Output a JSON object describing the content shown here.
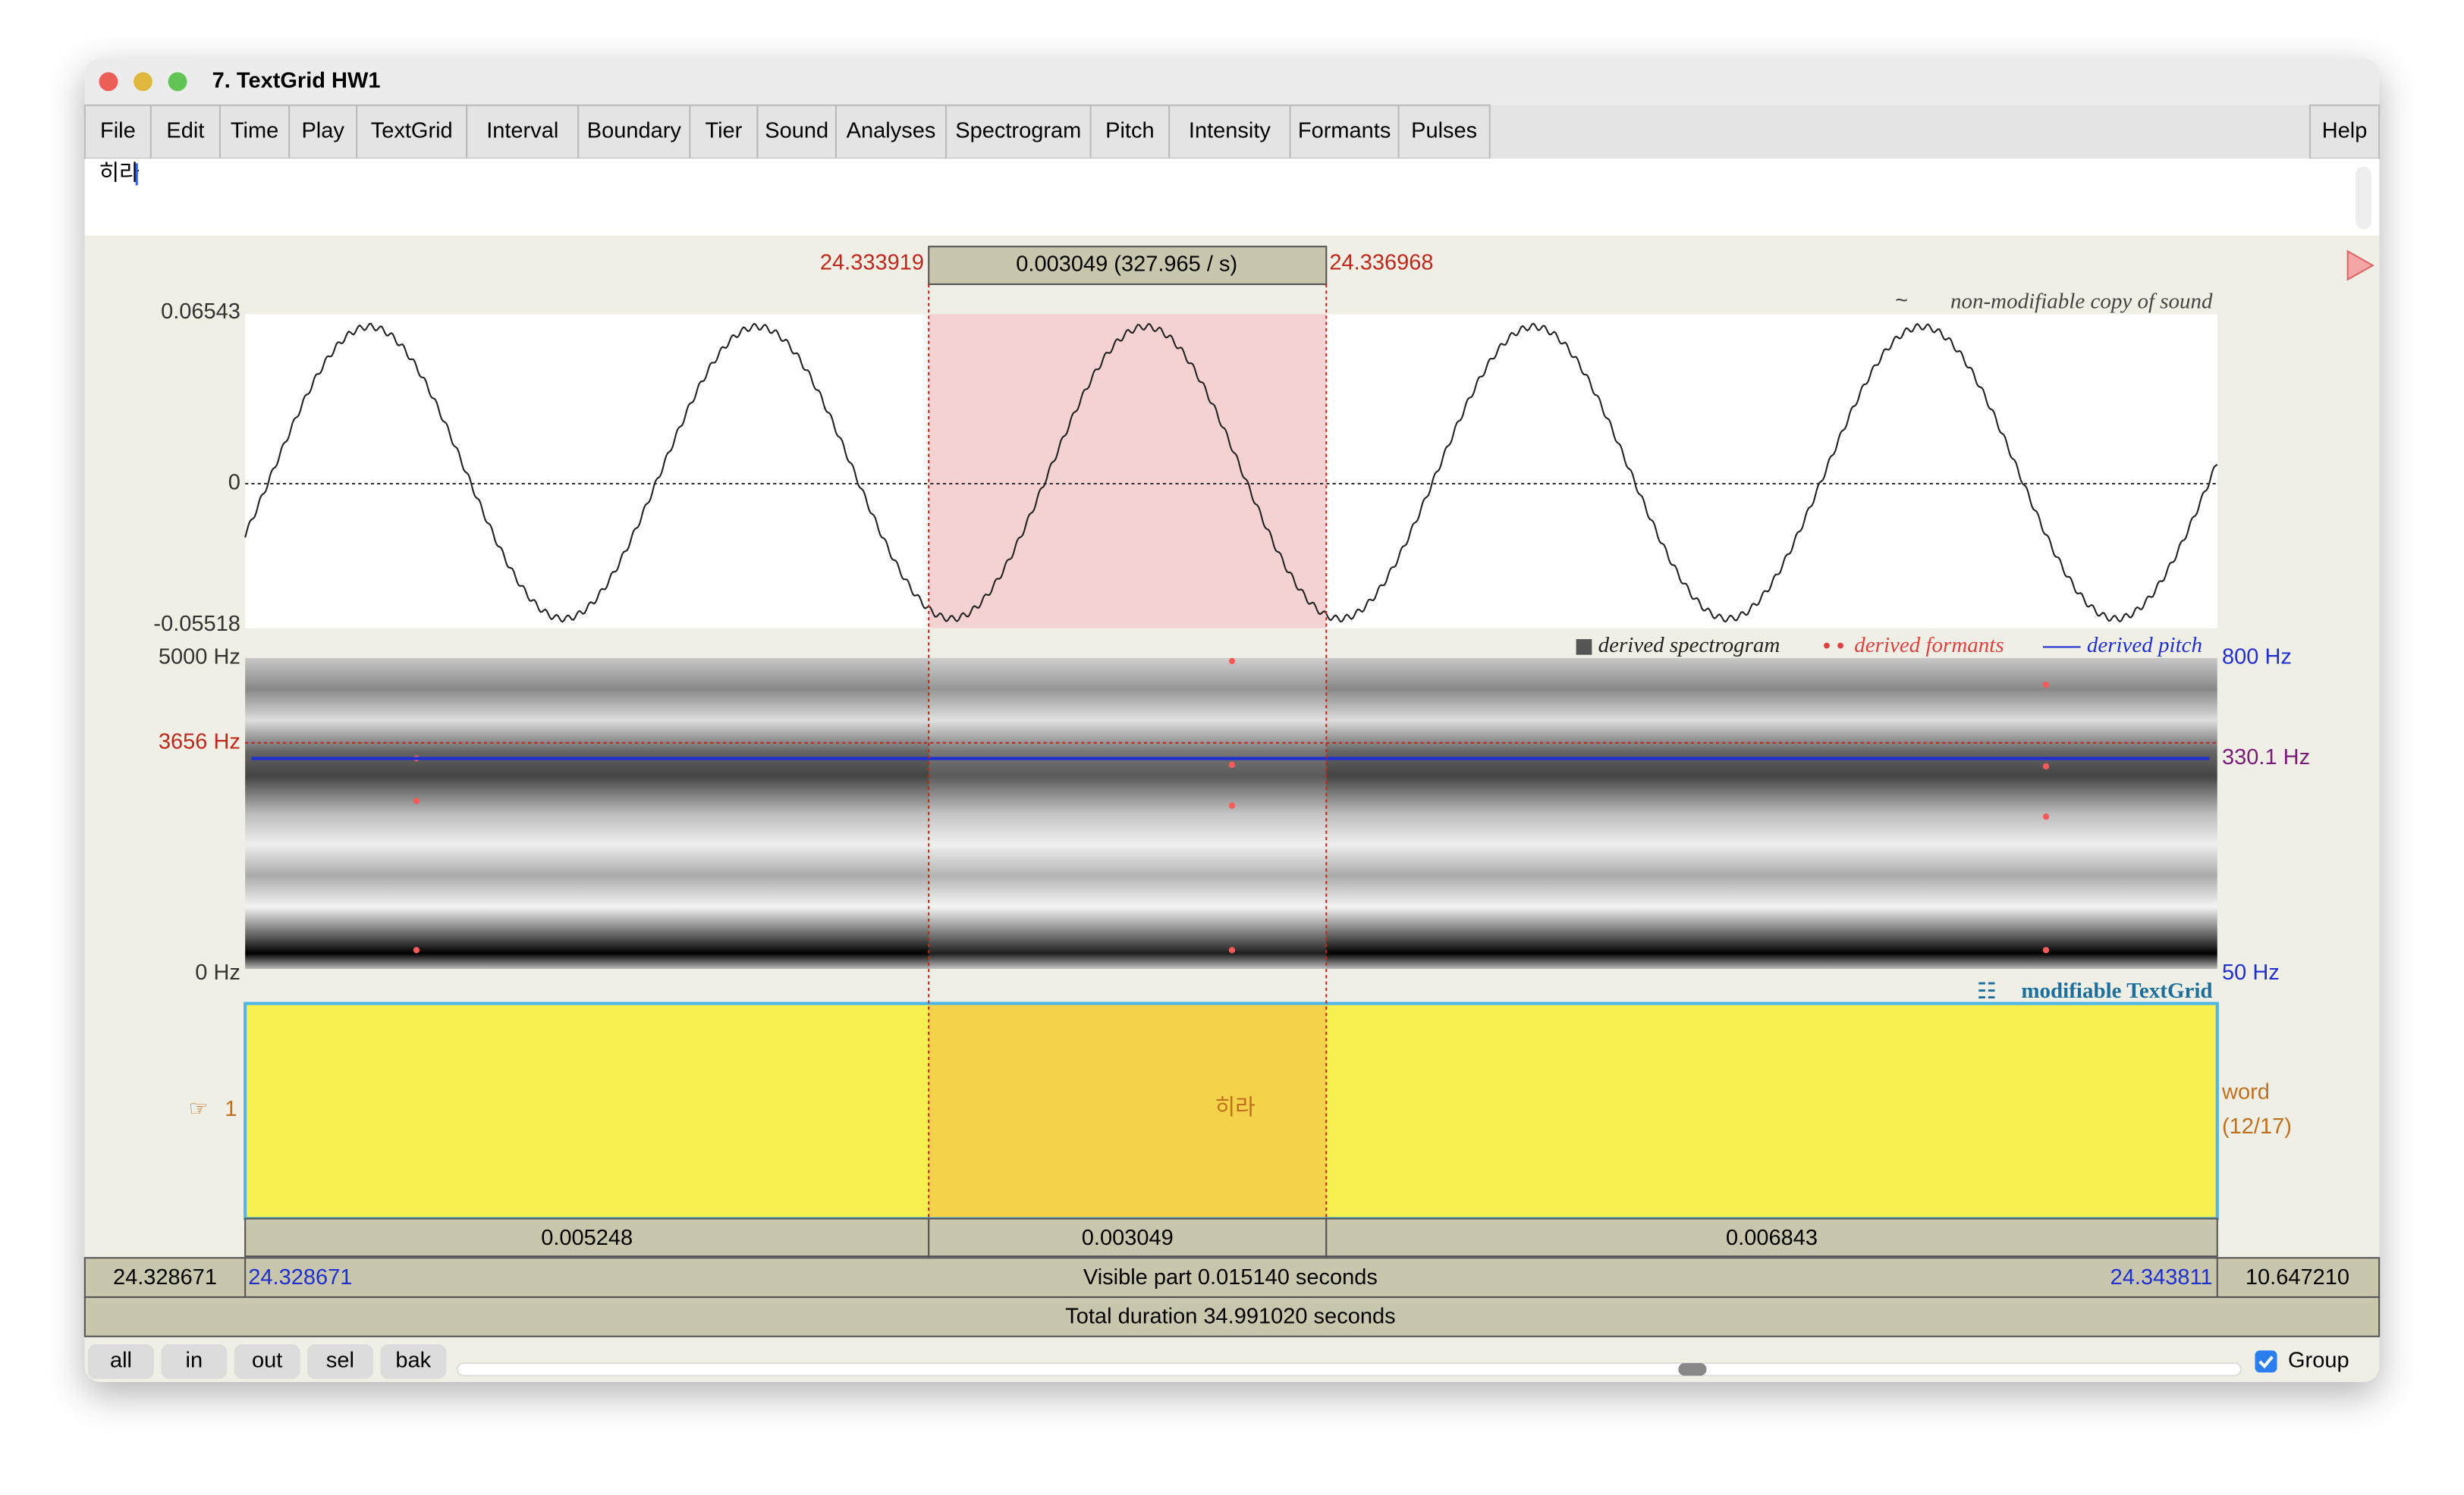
{
  "window": {
    "title": "7. TextGrid HW1"
  },
  "menu": [
    "File",
    "Edit",
    "Time",
    "Play",
    "TextGrid",
    "Interval",
    "Boundary",
    "Tier",
    "Sound",
    "Analyses",
    "Spectrogram",
    "Pitch",
    "Intensity",
    "Formants",
    "Pulses"
  ],
  "help": "Help",
  "text_field": "히라",
  "selection": {
    "start": "24.333919",
    "duration": "0.003049 (327.965 / s)",
    "end": "24.336968"
  },
  "sound": {
    "label": "non-modifiable copy of sound",
    "ymax": "0.06543",
    "zero": "0",
    "ymin": "-0.05518"
  },
  "spectrogram": {
    "legend": [
      "derived spectrogram",
      "derived formants",
      "derived pitch"
    ],
    "fmax": "5000 Hz",
    "cursor": "3656 Hz",
    "fmin": "0 Hz",
    "pitch_max": "800 Hz",
    "pitch_value": "330.1 Hz",
    "pitch_min": "50 Hz"
  },
  "textgrid": {
    "label": "modifiable TextGrid",
    "tier_number": "1",
    "tier_name": "word",
    "tier_count": "(12/17)",
    "interval_text": "히라"
  },
  "durations": [
    "0.005248",
    "0.003049",
    "0.006843"
  ],
  "visible": {
    "left": "24.328671",
    "start": "24.328671",
    "text": "Visible part 0.015140 seconds",
    "end": "24.343811",
    "right": "10.647210"
  },
  "total": "Total duration 34.991020 seconds",
  "buttons": [
    "all",
    "in",
    "out",
    "sel",
    "bak"
  ],
  "group": "Group"
}
